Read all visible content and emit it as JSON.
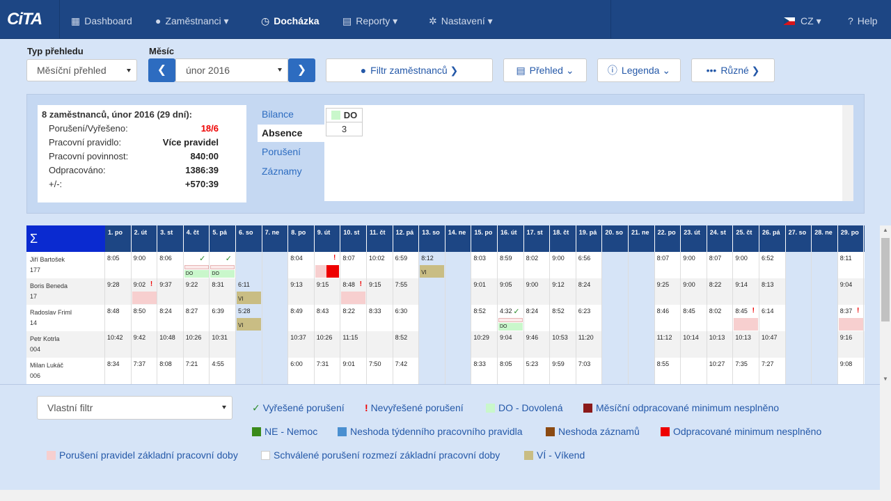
{
  "nav": {
    "brand": "CiTA",
    "dashboard": "Dashboard",
    "employees": "Zaměstnanci",
    "attendance": "Docházka",
    "reports": "Reporty",
    "settings": "Nastavení",
    "lang": "CZ",
    "help": "Help"
  },
  "toolbar": {
    "type_label": "Typ přehledu",
    "type_value": "Měsíční přehled",
    "month_label": "Měsíc",
    "month_value": "únor 2016",
    "filter": "Filtr zaměstnanců",
    "overview": "Přehled",
    "legend": "Legenda",
    "misc": "Různé"
  },
  "summary": {
    "title": "8 zaměstnanců, únor 2016 (29 dní):",
    "rows": [
      {
        "label": "Porušení/Vyřešeno:",
        "value": "18/6"
      },
      {
        "label": "Pracovní pravidlo:",
        "value": "Více pravidel"
      },
      {
        "label": "Pracovní povinnost:",
        "value": "840:00"
      },
      {
        "label": "Odpracováno:",
        "value": "1386:39"
      },
      {
        "label": "+/-:",
        "value": "+570:39"
      }
    ]
  },
  "tabs": [
    "Bilance",
    "Absence",
    "Porušení",
    "Záznamy"
  ],
  "absence": {
    "code": "DO",
    "count": "3"
  },
  "calendar": {
    "sigma": "Σ",
    "days": [
      "1. po",
      "2. út",
      "3. st",
      "4. čt",
      "5. pá",
      "6. so",
      "7. ne",
      "8. po",
      "9. út",
      "10. st",
      "11. čt",
      "12. pá",
      "13. so",
      "14. ne",
      "15. po",
      "16. út",
      "17. st",
      "18. čt",
      "19. pá",
      "20. so",
      "21. ne",
      "22. po",
      "23. út",
      "24. st",
      "25. čt",
      "26. pá",
      "27. so",
      "28. ne",
      "29. po"
    ],
    "employees": [
      {
        "name": "Jiří Bartošek",
        "id": "177",
        "times": [
          "8:05",
          "9:00",
          "8:06",
          "",
          "",
          "",
          "",
          "8:04",
          "",
          "8:07",
          "10:02",
          "6:59",
          "8:12",
          "",
          "8:03",
          "8:59",
          "8:02",
          "9:00",
          "6:56",
          "",
          "",
          "8:07",
          "9:00",
          "8:07",
          "9:00",
          "6:52",
          "",
          "",
          "8:11"
        ]
      },
      {
        "name": "Boris Beneda",
        "id": "17",
        "times": [
          "9:28",
          "9:02",
          "9:37",
          "9:22",
          "8:31",
          "6:11",
          "",
          "9:13",
          "9:15",
          "8:48",
          "9:15",
          "7:55",
          "",
          "",
          "9:01",
          "9:05",
          "9:00",
          "9:12",
          "8:24",
          "",
          "",
          "9:25",
          "9:00",
          "8:22",
          "9:14",
          "8:13",
          "",
          "",
          "9:04"
        ]
      },
      {
        "name": "Radoslav Friml",
        "id": "14",
        "times": [
          "8:48",
          "8:50",
          "8:24",
          "8:27",
          "6:39",
          "5:28",
          "",
          "8:49",
          "8:43",
          "8:22",
          "8:33",
          "6:30",
          "",
          "",
          "8:52",
          "4:32",
          "8:24",
          "8:52",
          "6:23",
          "",
          "",
          "8:46",
          "8:45",
          "8:02",
          "8:45",
          "6:14",
          "",
          "",
          "8:37"
        ]
      },
      {
        "name": "Petr Kotrla",
        "id": "004",
        "times": [
          "10:42",
          "9:42",
          "10:48",
          "10:26",
          "10:31",
          "",
          "",
          "10:37",
          "10:26",
          "11:15",
          "",
          "8:52",
          "",
          "",
          "10:29",
          "9:04",
          "9:46",
          "10:53",
          "11:20",
          "",
          "",
          "11:12",
          "10:14",
          "10:13",
          "10:13",
          "10:47",
          "",
          "",
          "9:16"
        ]
      },
      {
        "name": "Milan Lukáč",
        "id": "006",
        "times": [
          "8:34",
          "7:37",
          "8:08",
          "7:21",
          "4:55",
          "",
          "",
          "6:00",
          "7:31",
          "9:01",
          "7:50",
          "7:42",
          "",
          "",
          "8:33",
          "8:05",
          "5:23",
          "9:59",
          "7:03",
          "",
          "",
          "8:55",
          "",
          "10:27",
          "7:35",
          "7:27",
          "",
          "",
          "9:08"
        ]
      }
    ],
    "weekend_label": "VI",
    "vacation_label": "DO"
  },
  "legend": {
    "filter_value": "Vlastní filtr",
    "items": [
      {
        "label": "Vyřešené porušení",
        "color": "#2a8a2a",
        "kind": "check"
      },
      {
        "label": "Nevyřešené porušení",
        "color": "#e00",
        "kind": "excl"
      },
      {
        "label": "DO - Dovolená",
        "color": "#c9f7cb",
        "kind": "sw"
      },
      {
        "label": "Měsíční odpracované minimum nesplněno",
        "color": "#8b1a1a",
        "kind": "sw"
      },
      {
        "label": "NE - Nemoc",
        "color": "#3a8a1a",
        "kind": "sw"
      },
      {
        "label": "Neshoda týdenního pracovního pravidla",
        "color": "#4a8fd0",
        "kind": "sw"
      },
      {
        "label": "Neshoda záznamů",
        "color": "#8b4a12",
        "kind": "sw"
      },
      {
        "label": "Odpracované minimum nesplněno",
        "color": "#e00",
        "kind": "sw"
      },
      {
        "label": "Porušení pravidel základní pracovní doby",
        "color": "#f7cfcf",
        "kind": "sw"
      },
      {
        "label": "Schválené porušení rozmezí základní pracovní doby",
        "color": "#ffffff",
        "kind": "sw"
      },
      {
        "label": "VÍ - Víkend",
        "color": "#c9bd84",
        "kind": "sw"
      }
    ]
  }
}
